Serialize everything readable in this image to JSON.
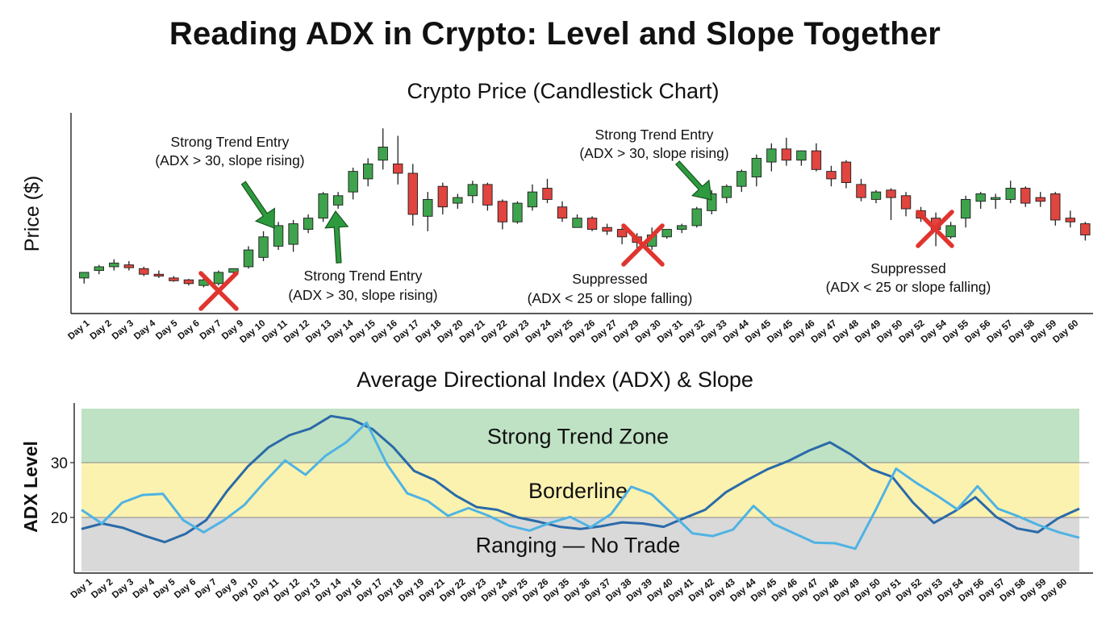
{
  "title": "Reading ADX in Crypto: Level and Slope Together",
  "colors": {
    "bull": "#3fa34d",
    "bear": "#e0453f",
    "wick": "#222222",
    "arrow": "#2e9a3e",
    "cross": "#e0352f",
    "adx_line": "#2b6aa8",
    "slope_line": "#4fb3e3",
    "zone_strong": "#bfe2c4",
    "zone_border": "#fbf2b0",
    "zone_range": "#d9d9d9"
  },
  "chart_data": [
    {
      "type": "candlestick",
      "title": "Crypto Price (Candlestick Chart)",
      "ylabel": "Price ($)",
      "xlabel": "",
      "x_tick_labels": [
        "Day 1",
        "Day 2",
        "Day 3",
        "Day 4",
        "Day 5",
        "Day 6",
        "Day 7",
        "Day 9",
        "Day 10",
        "Day 11",
        "Day 12",
        "Day 13",
        "Day 14",
        "Day 15",
        "Day 16",
        "Day 17",
        "Day 18",
        "Day 20",
        "Day 21",
        "Day 22",
        "Day 23",
        "Day 24",
        "Day 25",
        "Day 26",
        "Day 27",
        "Day 29",
        "Day 30",
        "Day 31",
        "Day 32",
        "Day 33",
        "Day 44",
        "Day 45",
        "Day 45",
        "Day 46",
        "Day 47",
        "Day 48",
        "Day 49",
        "Day 50",
        "Day 52",
        "Day 54",
        "Day 55",
        "Day 56",
        "Day 57",
        "Day 58",
        "Day 59",
        "Day 60"
      ],
      "ylim": [
        0,
        100
      ],
      "candles": [
        {
          "o": 16,
          "h": 19,
          "l": 13,
          "c": 19
        },
        {
          "o": 20,
          "h": 23,
          "l": 18,
          "c": 22
        },
        {
          "o": 22,
          "h": 26,
          "l": 20,
          "c": 24
        },
        {
          "o": 23,
          "h": 25,
          "l": 20,
          "c": 21.5
        },
        {
          "o": 21,
          "h": 22,
          "l": 17,
          "c": 18
        },
        {
          "o": 18,
          "h": 20,
          "l": 16,
          "c": 17
        },
        {
          "o": 16,
          "h": 17,
          "l": 14,
          "c": 14.5
        },
        {
          "o": 15,
          "h": 15.5,
          "l": 12,
          "c": 13
        },
        {
          "o": 12,
          "h": 17,
          "l": 11,
          "c": 15
        },
        {
          "o": 13,
          "h": 20,
          "l": 12,
          "c": 19
        },
        {
          "o": 19,
          "h": 21,
          "l": 18,
          "c": 21
        },
        {
          "o": 22,
          "h": 33,
          "l": 21,
          "c": 31
        },
        {
          "o": 27,
          "h": 41,
          "l": 25,
          "c": 38
        },
        {
          "o": 33,
          "h": 46,
          "l": 31,
          "c": 44
        },
        {
          "o": 34,
          "h": 47,
          "l": 30,
          "c": 45
        },
        {
          "o": 42,
          "h": 50,
          "l": 40,
          "c": 48
        },
        {
          "o": 48,
          "h": 62,
          "l": 46,
          "c": 61
        },
        {
          "o": 55,
          "h": 62,
          "l": 53,
          "c": 60
        },
        {
          "o": 62,
          "h": 75,
          "l": 58,
          "c": 73
        },
        {
          "o": 69,
          "h": 80,
          "l": 65,
          "c": 77
        },
        {
          "o": 79,
          "h": 96,
          "l": 74,
          "c": 86
        },
        {
          "o": 77,
          "h": 92,
          "l": 66,
          "c": 72
        },
        {
          "o": 72,
          "h": 77,
          "l": 44,
          "c": 50
        },
        {
          "o": 49,
          "h": 62,
          "l": 41,
          "c": 58
        },
        {
          "o": 65,
          "h": 67,
          "l": 50,
          "c": 54
        },
        {
          "o": 56,
          "h": 61,
          "l": 53,
          "c": 59
        },
        {
          "o": 60,
          "h": 68,
          "l": 56,
          "c": 66
        },
        {
          "o": 66,
          "h": 67,
          "l": 52,
          "c": 55
        },
        {
          "o": 57,
          "h": 58,
          "l": 42,
          "c": 46
        },
        {
          "o": 46,
          "h": 57,
          "l": 45,
          "c": 56
        },
        {
          "o": 54,
          "h": 66,
          "l": 52,
          "c": 62
        },
        {
          "o": 64,
          "h": 69,
          "l": 56,
          "c": 58
        },
        {
          "o": 54,
          "h": 57,
          "l": 46,
          "c": 48
        },
        {
          "o": 43,
          "h": 50,
          "l": 43,
          "c": 48
        },
        {
          "o": 48,
          "h": 49,
          "l": 41,
          "c": 42
        },
        {
          "o": 43,
          "h": 45,
          "l": 39,
          "c": 41
        },
        {
          "o": 42,
          "h": 43,
          "l": 34,
          "c": 38
        },
        {
          "o": 38,
          "h": 40,
          "l": 32,
          "c": 35
        },
        {
          "o": 33,
          "h": 43,
          "l": 31,
          "c": 39
        },
        {
          "o": 38,
          "h": 42,
          "l": 37,
          "c": 42
        },
        {
          "o": 42,
          "h": 45,
          "l": 40,
          "c": 44
        },
        {
          "o": 44,
          "h": 54,
          "l": 43,
          "c": 53
        },
        {
          "o": 52,
          "h": 63,
          "l": 50,
          "c": 61
        },
        {
          "o": 59,
          "h": 66,
          "l": 56,
          "c": 65
        },
        {
          "o": 65,
          "h": 74,
          "l": 62,
          "c": 73
        },
        {
          "o": 70,
          "h": 82,
          "l": 65,
          "c": 80
        },
        {
          "o": 78,
          "h": 88,
          "l": 73,
          "c": 85
        },
        {
          "o": 85,
          "h": 91,
          "l": 76,
          "c": 79
        },
        {
          "o": 79,
          "h": 84,
          "l": 76,
          "c": 84
        },
        {
          "o": 84,
          "h": 88,
          "l": 73,
          "c": 74
        },
        {
          "o": 73,
          "h": 76,
          "l": 65,
          "c": 69
        },
        {
          "o": 78,
          "h": 79,
          "l": 64,
          "c": 67
        },
        {
          "o": 66,
          "h": 69,
          "l": 57,
          "c": 59
        },
        {
          "o": 58,
          "h": 63,
          "l": 56,
          "c": 62
        },
        {
          "o": 63,
          "h": 64,
          "l": 47,
          "c": 59
        },
        {
          "o": 60,
          "h": 62,
          "l": 49,
          "c": 53
        },
        {
          "o": 52,
          "h": 54,
          "l": 46,
          "c": 48
        },
        {
          "o": 48,
          "h": 51,
          "l": 33,
          "c": 42
        },
        {
          "o": 38,
          "h": 46,
          "l": 37,
          "c": 44
        },
        {
          "o": 48,
          "h": 60,
          "l": 43,
          "c": 58
        },
        {
          "o": 57,
          "h": 62,
          "l": 53,
          "c": 61
        },
        {
          "o": 58,
          "h": 61,
          "l": 53,
          "c": 59
        },
        {
          "o": 58,
          "h": 68,
          "l": 56,
          "c": 64
        },
        {
          "o": 64,
          "h": 65,
          "l": 54,
          "c": 56
        },
        {
          "o": 59,
          "h": 62,
          "l": 54,
          "c": 57
        },
        {
          "o": 61,
          "h": 62,
          "l": 44,
          "c": 47
        },
        {
          "o": 48,
          "h": 52,
          "l": 43,
          "c": 46
        },
        {
          "o": 45,
          "h": 46,
          "l": 36,
          "c": 39
        }
      ],
      "annotations": [
        {
          "text1": "Strong Trend Entry",
          "text2": "(ADX > 30, slope rising)"
        },
        {
          "text1": "Strong Trend Entry",
          "text2": "(ADX > 30, slope rising)"
        },
        {
          "text1": "Strong Trend Entry",
          "text2": "(ADX > 30, slope rising)"
        },
        {
          "text1": "Suppressed",
          "text2": "(ADX < 25 or slope falling)"
        },
        {
          "text1": "Suppressed",
          "text2": "(ADX < 25 or slope falling)"
        }
      ],
      "grid": false
    },
    {
      "type": "line",
      "title": "Average Directional Index (ADX) & Slope",
      "ylabel": "ADX Level",
      "ylim": [
        10,
        40
      ],
      "y_ticks": [
        20,
        30
      ],
      "x_tick_labels": [
        "Day 1",
        "Day 2",
        "Day 3",
        "Day 4",
        "Day 5",
        "Day 6",
        "Day 7",
        "Day 9",
        "Day 10",
        "Day 11",
        "Day 12",
        "Day 13",
        "Day 14",
        "Day 16",
        "Day 17",
        "Day 18",
        "Day 19",
        "Day 21",
        "Day 22",
        "Day 23",
        "Day 24",
        "Day 25",
        "Day 26",
        "Day 35",
        "Day 36",
        "Day 37",
        "Day 38",
        "Day 39",
        "Day 40",
        "Day 41",
        "Day 42",
        "Day 43",
        "Day 44",
        "Day 45",
        "Day 46",
        "Day 47",
        "Day 48",
        "Day 49",
        "Day 50",
        "Day 51",
        "Day 52",
        "Day 53",
        "Day 54",
        "Day 56",
        "Day 57",
        "Day 58",
        "Day 59",
        "Day 60"
      ],
      "zones": [
        {
          "label": "Strong Trend Zone",
          "from": 30,
          "to": 40
        },
        {
          "label": "Borderline",
          "from": 20,
          "to": 30
        },
        {
          "label": "Ranging — No Trade",
          "from": 10,
          "to": 20
        }
      ],
      "series": [
        {
          "values": [
            17.9,
            18.9,
            18.1,
            16.7,
            15.5,
            17.0,
            19.5,
            24.8,
            29.3,
            32.8,
            35.0,
            36.2,
            38.5,
            37.9,
            36.1,
            32.8,
            28.5,
            26.8,
            24.0,
            21.9,
            21.4,
            20.0,
            19.2,
            18.3,
            17.9,
            18.4,
            19.1,
            18.9,
            18.3,
            19.9,
            21.4,
            24.6,
            26.8,
            28.8,
            30.3,
            32.2,
            33.7,
            31.5,
            28.8,
            27.4,
            22.7,
            19.0,
            21.1,
            23.7,
            20.1,
            18.0,
            17.3,
            19.9,
            21.6
          ]
        },
        {
          "values": [
            21.4,
            18.9,
            22.7,
            24.1,
            24.3,
            19.5,
            17.3,
            19.5,
            22.3,
            26.5,
            30.4,
            27.8,
            31.3,
            33.7,
            37.3,
            29.7,
            24.4,
            23.0,
            20.3,
            21.7,
            20.3,
            18.5,
            17.6,
            19.0,
            20.1,
            18.2,
            20.6,
            25.6,
            24.2,
            20.7,
            17.1,
            16.6,
            17.8,
            22.1,
            18.8,
            17.1,
            15.4,
            15.3,
            14.3,
            21.4,
            28.9,
            26.3,
            24.0,
            21.5,
            25.7,
            21.6,
            20.2,
            18.6,
            17.3,
            16.3
          ]
        }
      ]
    }
  ]
}
